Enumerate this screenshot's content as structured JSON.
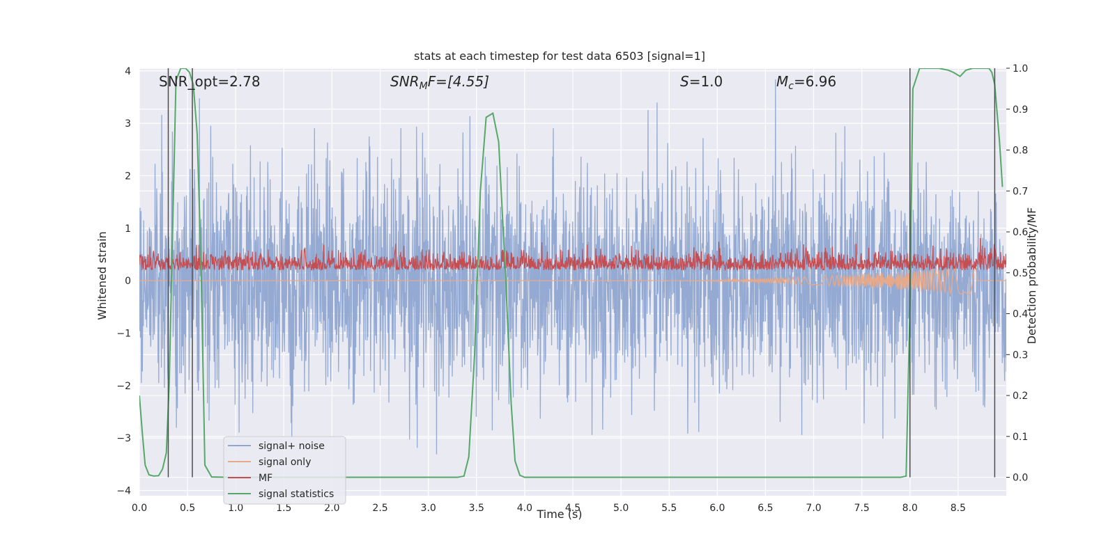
{
  "chart_data": {
    "type": "line",
    "title": "stats at each timestep for test data 6503 [signal=1]",
    "xlabel": "Time (s)",
    "ylabel": "Whitened strain",
    "y2label": "Detection probability/MF",
    "xlim": [
      0.0,
      9.0
    ],
    "ylim": [
      -4.1,
      4.05
    ],
    "y2lim": [
      -0.045,
      1.0
    ],
    "x_ticks": [
      "0.0",
      "0.5",
      "1.0",
      "1.5",
      "2.0",
      "2.5",
      "3.0",
      "3.5",
      "4.0",
      "4.5",
      "5.0",
      "5.5",
      "6.0",
      "6.5",
      "7.0",
      "7.5",
      "8.0",
      "8.5"
    ],
    "y_ticks": [
      "4",
      "3",
      "2",
      "1",
      "0",
      "−1",
      "−2",
      "−3",
      "−4"
    ],
    "y2_ticks": [
      "1.0",
      "0.9",
      "0.8",
      "0.7",
      "0.6",
      "0.5",
      "0.4",
      "0.3",
      "0.2",
      "0.1",
      "0.0"
    ],
    "grid": true,
    "legend_position": "lower-left",
    "annotations": {
      "snr_opt": "SNR_opt=2.78",
      "snr_mf_sym": "SNR",
      "snr_mf_sub": "M",
      "snr_mf_rest": "F=[4.55]",
      "s_sym": "S",
      "s_rest": "=1.0",
      "mc_sym": "M",
      "mc_sub": "c",
      "mc_rest": "=6.96"
    },
    "series": [
      {
        "name": "signal+ noise",
        "color": "#8fa6d0",
        "axis": "left",
        "kind": "noise",
        "amplitude_sigma": 1.05,
        "x_range": [
          0.0,
          9.0
        ]
      },
      {
        "name": "signal only",
        "color": "#e8a98a",
        "axis": "left",
        "kind": "chirp",
        "start": 5.5,
        "end": 8.7,
        "peak_amplitude": 0.28
      },
      {
        "name": "MF",
        "color": "#c44e52",
        "axis": "left",
        "kind": "mf",
        "baseline": 0.2,
        "max": 1.0
      },
      {
        "name": "signal statistics",
        "color": "#55a868",
        "axis": "right",
        "x": [
          0.0,
          0.03,
          0.06,
          0.1,
          0.15,
          0.2,
          0.24,
          0.28,
          0.31,
          0.34,
          0.38,
          0.43,
          0.48,
          0.52,
          0.56,
          0.6,
          0.64,
          0.68,
          0.75,
          0.9,
          1.5,
          2.0,
          2.5,
          3.0,
          3.3,
          3.37,
          3.42,
          3.48,
          3.54,
          3.6,
          3.67,
          3.73,
          3.8,
          3.86,
          3.9,
          3.95,
          4.0,
          4.5,
          5.0,
          6.0,
          7.0,
          7.5,
          7.9,
          7.96,
          8.0,
          8.03,
          8.1,
          8.2,
          8.3,
          8.4,
          8.45,
          8.52,
          8.58,
          8.65,
          8.7,
          8.77,
          8.82,
          8.85,
          8.88,
          8.93,
          8.96
        ],
        "values": [
          0.2,
          0.11,
          0.03,
          0.006,
          0.003,
          0.004,
          0.02,
          0.06,
          0.23,
          0.55,
          0.97,
          1.0,
          1.0,
          0.99,
          0.96,
          0.84,
          0.52,
          0.03,
          0.001,
          0.0,
          0.0,
          0.0,
          0.0,
          0.0,
          0.0,
          0.003,
          0.05,
          0.3,
          0.7,
          0.88,
          0.89,
          0.82,
          0.5,
          0.18,
          0.04,
          0.005,
          0.0,
          0.0,
          0.0,
          0.0,
          0.0,
          0.0,
          0.0,
          0.003,
          0.42,
          0.95,
          1.0,
          1.0,
          1.0,
          0.995,
          0.99,
          0.98,
          0.995,
          1.0,
          1.0,
          1.0,
          1.0,
          0.99,
          0.96,
          0.82,
          0.71
        ]
      }
    ],
    "vertical_markers": {
      "color": "#4d4d4d",
      "x": [
        0.3,
        0.55,
        8.0,
        8.88
      ]
    }
  }
}
